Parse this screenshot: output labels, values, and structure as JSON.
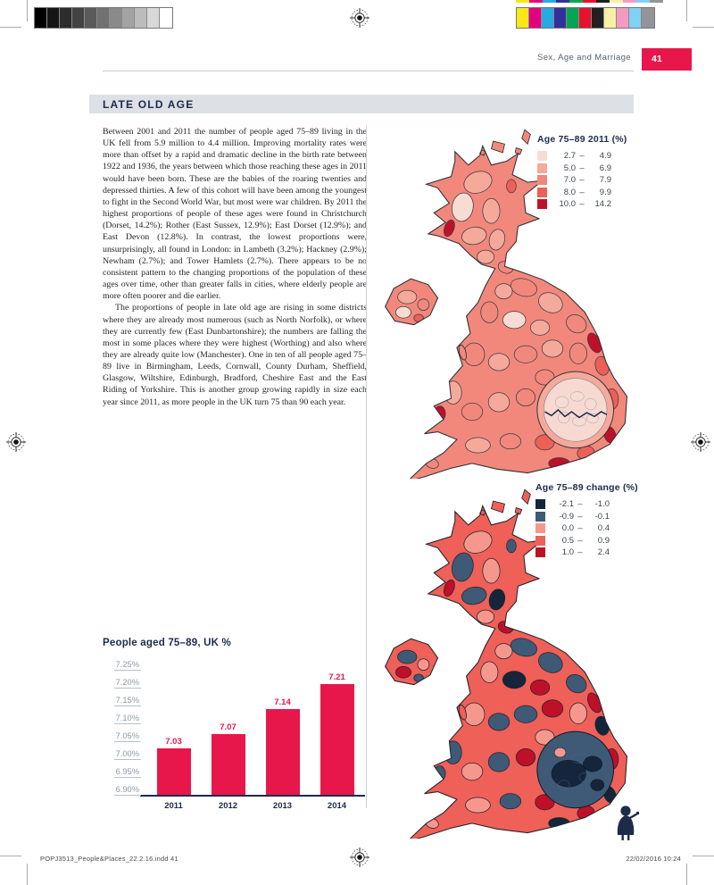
{
  "page": {
    "header": {
      "section": "Sex, Age and Marriage",
      "page_number": "41"
    },
    "article_title": "LATE OLD AGE",
    "paragraphs": [
      "Between 2001 and 2011 the number of people aged 75–89 living in the UK fell from 5.9 million to 4.4 million. Improving mortality rates were more than offset by a rapid and dramatic decline in the birth rate between 1922 and 1936, the years between which those reaching these ages in 2011 would have been born. These are the babies of the roaring twenties and depressed thirties. A few of this cohort will have been among the youngest to fight in the Second World War, but most were war children. By 2011 the highest proportions of people of these ages were found in Christchurch (Dorset, 14.2%); Rother (East Sussex, 12.9%); East Dorset (12.9%); and East Devon (12.8%). In contrast, the lowest proportions were, unsurprisingly, all found in London: in Lambeth (3.2%); Hackney (2.9%); Newham (2.7%); and Tower Hamlets (2.7%). There appears to be no consistent pattern to the changing proportions of the population of these ages over time, other than greater falls in cities, where elderly people are more often poorer and die earlier.",
      "The proportions of people in late old age are rising in some districts where they are already most numerous (such as North Norfolk), or where they are currently few (East Dunbartonshire); the numbers are falling the most in some places where they were highest (Worthing) and also where they are already quite low (Manchester). One in ten of all people aged 75–89 live in Birmingham, Leeds, Cornwall, County Durham, Sheffield, Glasgow, Wiltshire, Edinburgh, Bradford, Cheshire East and the East Riding of Yorkshire. This is another group growing rapidly in size each year since 2011, as more people in the UK turn 75 than 90 each year."
    ],
    "footer": {
      "left": "POPJ3513_People&Places_22.2.16.indd   41",
      "right": "22/02/2016   10:24"
    }
  },
  "legend_2011": {
    "title": "Age 75–89 2011 (%)",
    "separator": "–",
    "classes": [
      {
        "color": "#f8dcd4",
        "from": "2.7",
        "to": "4.9"
      },
      {
        "color": "#f5a99b",
        "from": "5.0",
        "to": "6.9"
      },
      {
        "color": "#f1887b",
        "from": "7.0",
        "to": "7.9"
      },
      {
        "color": "#ec6057",
        "from": "8.0",
        "to": "9.9"
      },
      {
        "color": "#bf1029",
        "from": "10.0",
        "to": "14.2"
      }
    ]
  },
  "legend_change": {
    "title": "Age 75–89 change (%)",
    "separator": "–",
    "classes": [
      {
        "color": "#15253b",
        "from": "-2.1",
        "to": "-1.0"
      },
      {
        "color": "#3e5a77",
        "from": "-0.9",
        "to": "-0.1"
      },
      {
        "color": "#f6978e",
        "from": "0.0",
        "to": "0.4"
      },
      {
        "color": "#ee6058",
        "from": "0.5",
        "to": "0.9"
      },
      {
        "color": "#bf1029",
        "from": "1.0",
        "to": "2.4"
      }
    ]
  },
  "chart_data": {
    "type": "bar",
    "title": "People aged 75–89, UK %",
    "categories": [
      "2011",
      "2012",
      "2013",
      "2014"
    ],
    "values": [
      7.03,
      7.07,
      7.14,
      7.21
    ],
    "value_labels": [
      "7.03",
      "7.07",
      "7.14",
      "7.21"
    ],
    "y_ticks": [
      "7.25%",
      "7.20%",
      "7.15%",
      "7.10%",
      "7.05%",
      "7.00%",
      "6.95%",
      "6.90%"
    ],
    "ylim": [
      6.9,
      7.25
    ],
    "bar_color": "#e8174b",
    "grid": "underlined y tick labels, navy baseline",
    "legend": "none"
  },
  "print_marks": {
    "grayscale_bar": [
      "#000000",
      "#161616",
      "#2c2c2c",
      "#434343",
      "#5a5a5a",
      "#717171",
      "#8a8a8a",
      "#a3a3a3",
      "#bcbcbc",
      "#d8d8d8",
      "#ffffff"
    ],
    "color_bar": [
      "#f7e817",
      "#e2007f",
      "#27aae1",
      "#32309b",
      "#00a651",
      "#e8112d",
      "#231f20",
      "#f8f1a5",
      "#f49ac1",
      "#7fd2f4",
      "#929497"
    ]
  },
  "colors": {
    "accent_red": "#e8174b",
    "navy": "#1b2b49",
    "titlebar_gray": "#dde0e4"
  }
}
